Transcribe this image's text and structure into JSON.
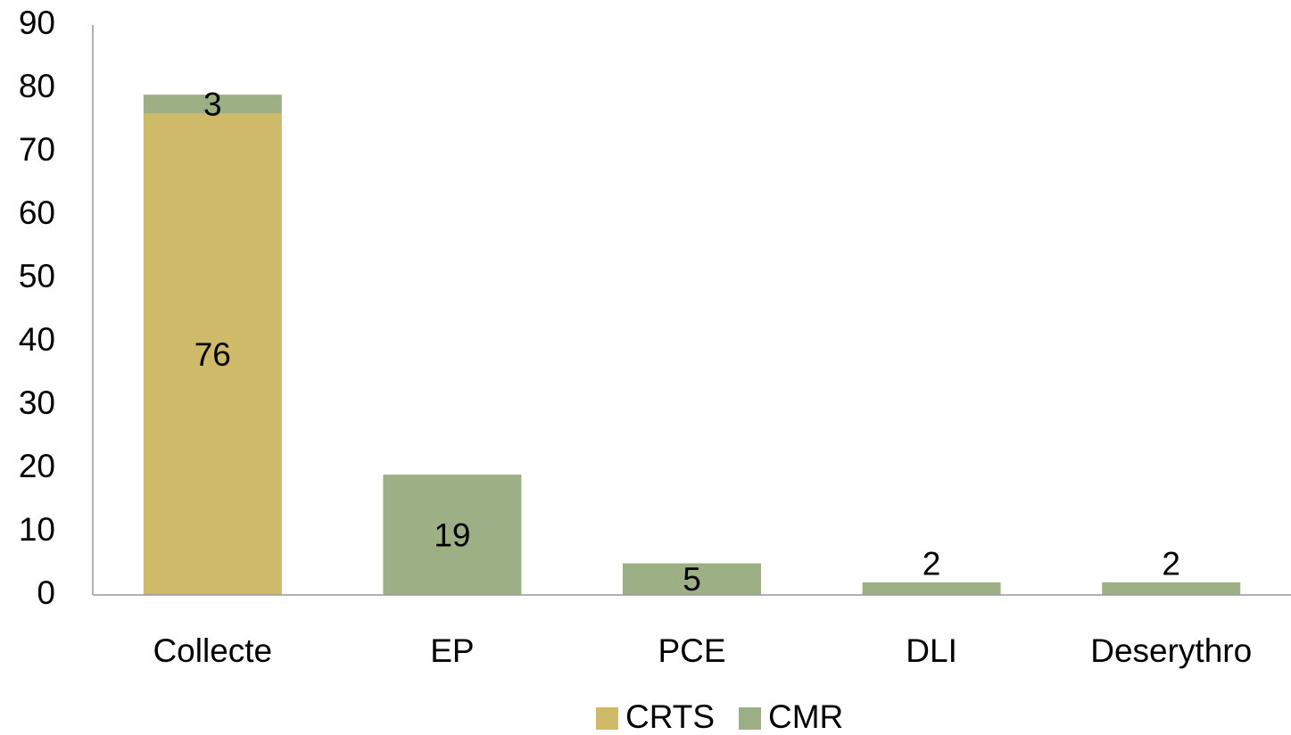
{
  "chart_data": {
    "type": "stacked_bar",
    "categories": [
      "Collecte",
      "EP",
      "PCE",
      "DLI",
      "Deserythro"
    ],
    "series": [
      {
        "name": "CRTS",
        "color": "#cfba69",
        "values": [
          76,
          null,
          null,
          null,
          null
        ]
      },
      {
        "name": "CMR",
        "color": "#9db085",
        "values": [
          3,
          19,
          5,
          2,
          2
        ]
      }
    ],
    "ylim": [
      0,
      90
    ],
    "yticks": [
      0,
      10,
      20,
      30,
      40,
      50,
      60,
      70,
      80,
      90
    ],
    "grid": false,
    "legend": "bottom"
  }
}
